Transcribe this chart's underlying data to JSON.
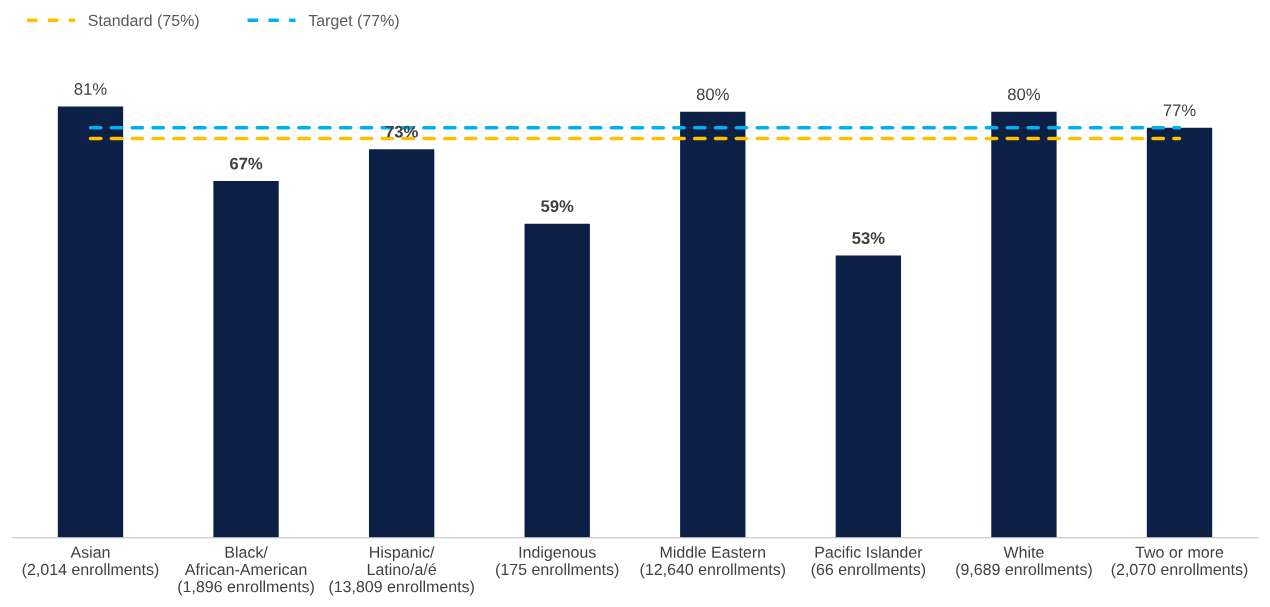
{
  "chart_data": {
    "type": "bar",
    "categories": [
      "Asian\n(2,014 enrollments)",
      "Black/\nAfrican-American\n(1,896 enrollments)",
      "Hispanic/\nLatino/a/é\n(13,809 enrollments)",
      "Indigenous\n(175 enrollments)",
      "Middle Eastern\n(12,640 enrollments)",
      "Pacific Islander\n(66 enrollments)",
      "White\n(9,689 enrollments)",
      "Two or more\n(2,070 enrollments)"
    ],
    "values": [
      81,
      67,
      73,
      59,
      80,
      53,
      80,
      77
    ],
    "value_labels": [
      "81%",
      "67%",
      "73%",
      "59%",
      "80%",
      "53%",
      "80%",
      "77%"
    ],
    "color": "#0c1f45",
    "ref_lines": [
      {
        "axis": "y",
        "value": 75,
        "label": "Standard (75%)",
        "color": "#ffc000",
        "line_style": "dashed"
      },
      {
        "axis": "y",
        "value": 77,
        "label": "Target (77%)",
        "color": "#00b0f0",
        "line_style": "dashed"
      }
    ],
    "legend": "top left",
    "grid": false
  }
}
